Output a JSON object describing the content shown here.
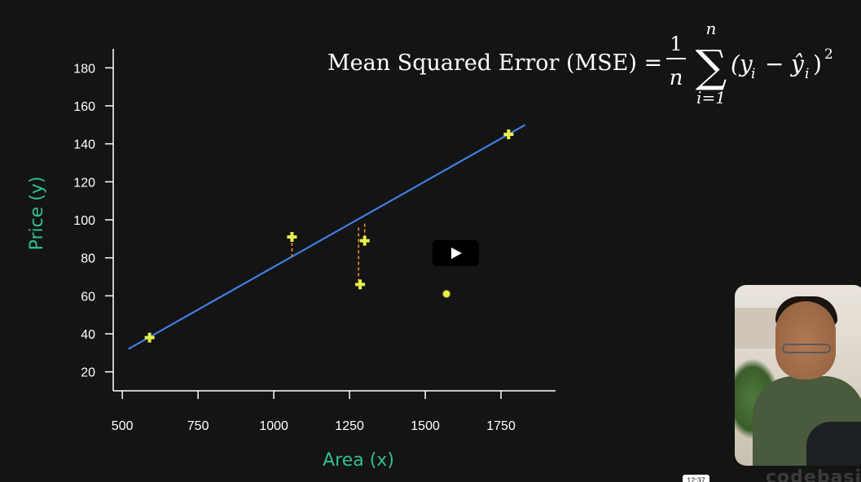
{
  "formula": {
    "lhs": "Mean Squared Error (MSE) =",
    "frac_num": "1",
    "frac_den": "n",
    "sum_top": "n",
    "sum_symbol": "∑",
    "sum_bottom": "i=1",
    "term": "(y",
    "sub_i": "i",
    "minus": "−",
    "yhat": "ŷ",
    "sub_i2": "i",
    "close": ")",
    "exponent": "2"
  },
  "chart_data": {
    "type": "scatter",
    "xlabel": "Area (x)",
    "ylabel": "Price (y)",
    "xlim": [
      470,
      1930
    ],
    "ylim": [
      10,
      190
    ],
    "x_ticks": [
      500,
      750,
      1000,
      1250,
      1500,
      1750
    ],
    "y_ticks": [
      20,
      40,
      60,
      80,
      100,
      120,
      140,
      160,
      180
    ],
    "x_tick_labels": [
      "500",
      "750",
      "1000",
      "1250",
      "1500",
      "1750"
    ],
    "y_tick_labels": [
      "20",
      "40",
      "60",
      "80",
      "100",
      "120",
      "140",
      "160",
      "180"
    ],
    "grid": false,
    "points": [
      {
        "x": 590,
        "y": 38,
        "marker": "plus"
      },
      {
        "x": 1060,
        "y": 91,
        "marker": "plus"
      },
      {
        "x": 1285,
        "y": 66,
        "marker": "plus"
      },
      {
        "x": 1300,
        "y": 89,
        "marker": "plus"
      },
      {
        "x": 1775,
        "y": 145,
        "marker": "plus"
      },
      {
        "x": 1570,
        "y": 61,
        "marker": "dot"
      }
    ],
    "fit_line": {
      "x": [
        520,
        1830
      ],
      "y": [
        32,
        150
      ],
      "color": "#3f7fe0"
    },
    "residuals": [
      {
        "x": 1060,
        "y1": 91,
        "y2": 79
      },
      {
        "x": 1280,
        "y1": 96,
        "y2": 66
      },
      {
        "x": 1300,
        "y1": 98,
        "y2": 89
      }
    ],
    "colors": {
      "points": "#e6f04a",
      "residual": "#e8902a",
      "axis_title": "#2fbf8f",
      "axis": "#ffffff"
    }
  },
  "video": {
    "play_icon": "play-icon",
    "timestamp": "12:37",
    "watermark": "codebasics"
  }
}
